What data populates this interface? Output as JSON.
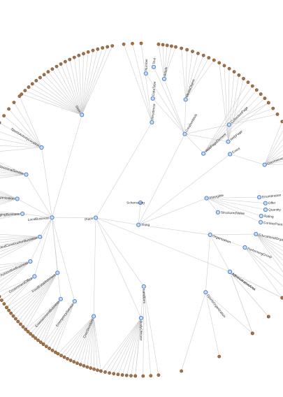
{
  "colors": {
    "edge": "#cfcfcf",
    "inner_node_fill": "#c9dbf4",
    "inner_node_stroke": "#4f86c6",
    "leaf_node_fill": "#a47248"
  },
  "root": {
    "label": "Schema.org"
  },
  "branches": [
    {
      "label": "Thing",
      "children": [
        {
          "label": "Intangible",
          "children": [
            {
              "label": "Enumeration",
              "leaves": 0
            },
            {
              "label": "Offer",
              "leaves": 0
            },
            {
              "label": "Quantity",
              "leaves": 0
            },
            {
              "label": "Rating",
              "leaves": 0
            },
            {
              "label": "StructuredValue",
              "leaves": 0
            },
            {
              "label": "ContactPoint",
              "leaves": 0
            }
          ]
        },
        {
          "label": "Organization",
          "children": [
            {
              "label": "EducationalOrganization",
              "leaves": 6
            },
            {
              "label": "PerformingGroup",
              "leaves": 3
            },
            {
              "label": "AdministrativeArea",
              "leaves": 3
            },
            {
              "label": "SportsOrganization",
              "leaves": 3
            }
          ]
        },
        {
          "label": "Event",
          "children": [
            {
              "label": "UserInteraction",
              "leaves": 9
            }
          ]
        },
        {
          "label": "CreativeWork",
          "children": [
            {
              "label": "WebPageElement",
              "leaves": 6
            },
            {
              "label": "WebPage",
              "leaves": 6
            },
            {
              "label": "CollectionPage",
              "leaves": 3
            },
            {
              "label": "MediaObject",
              "leaves": 7
            },
            {
              "label": "Article",
              "leaves": 5
            },
            {
              "label": "DataType",
              "leaves": 0
            },
            {
              "label": "Number",
              "leaves": 0
            },
            {
              "label": "Text",
              "leaves": 0
            }
          ]
        },
        {
          "label": "Place",
          "children": [
            {
              "label": "LocalBusiness",
              "children": [
                {
                  "label": "SportsActivityLocation",
                  "leaves": 9
                },
                {
                  "label": "ProfessionalService",
                  "leaves": 8
                },
                {
                  "label": "MedicalOrganization",
                  "leaves": 10
                },
                {
                  "label": "LodgingBusiness",
                  "leaves": 5
                },
                {
                  "label": "HomeAndConstructionBusiness",
                  "leaves": 9
                },
                {
                  "label": "AutomotiveBusiness",
                  "leaves": 8
                },
                {
                  "label": "GovernmentOffice",
                  "leaves": 5
                },
                {
                  "label": "FoodEstablishment",
                  "leaves": 9
                },
                {
                  "label": "EntertainmentBusiness",
                  "leaves": 8
                },
                {
                  "label": "EmergencyService",
                  "leaves": 5
                },
                {
                  "label": "Store",
                  "leaves": 22
                }
              ]
            },
            {
              "label": "CivicStructure",
              "leaves": 14
            },
            {
              "label": "Residence",
              "leaves": 3
            },
            {
              "label": "Landform",
              "leaves": 4
            },
            {
              "label": "BodyOfWater",
              "leaves": 9
            },
            {
              "label": "AdministrativeArea",
              "leaves": 3
            }
          ]
        }
      ]
    }
  ]
}
